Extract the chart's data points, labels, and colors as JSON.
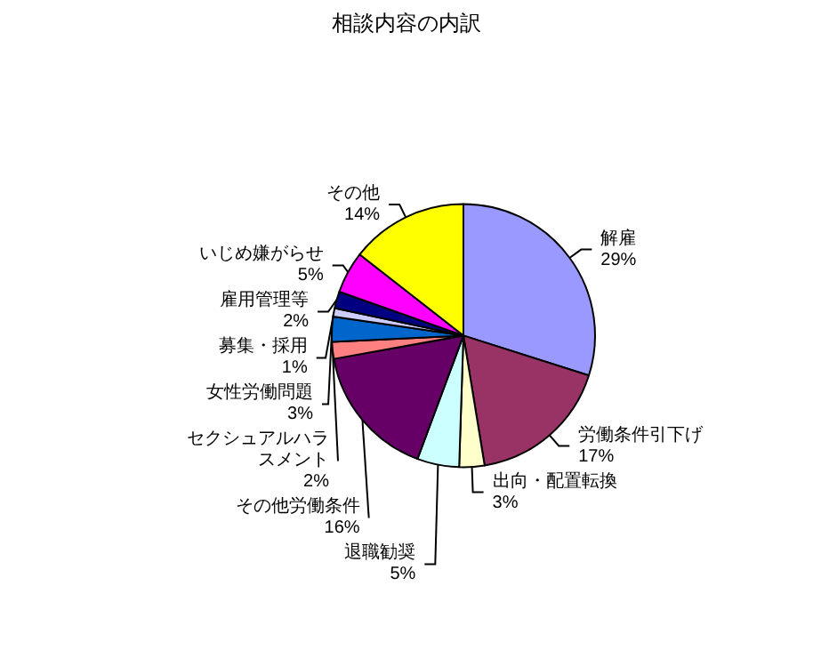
{
  "chart_data": {
    "type": "pie",
    "title": "相談内容の内訳",
    "categories": [
      "解雇",
      "労働条件引下げ",
      "出向・配置転換",
      "退職勧奨",
      "その他労働条件",
      "セクシュアルハラスメント",
      "女性労働問題",
      "募集・採用",
      "雇用管理等",
      "いじめ嫌がらせ",
      "その他"
    ],
    "values": [
      29,
      17,
      3,
      5,
      16,
      2,
      3,
      1,
      2,
      5,
      14
    ],
    "value_labels": [
      "29%",
      "17%",
      "3%",
      "5%",
      "16%",
      "2%",
      "3%",
      "1%",
      "2%",
      "5%",
      "14%"
    ],
    "colors": [
      "#9999ff",
      "#993366",
      "#ffffcc",
      "#ccffff",
      "#660066",
      "#ff8080",
      "#0066cc",
      "#ccccff",
      "#000080",
      "#ff00ff",
      "#ffff00"
    ],
    "legend": false
  }
}
